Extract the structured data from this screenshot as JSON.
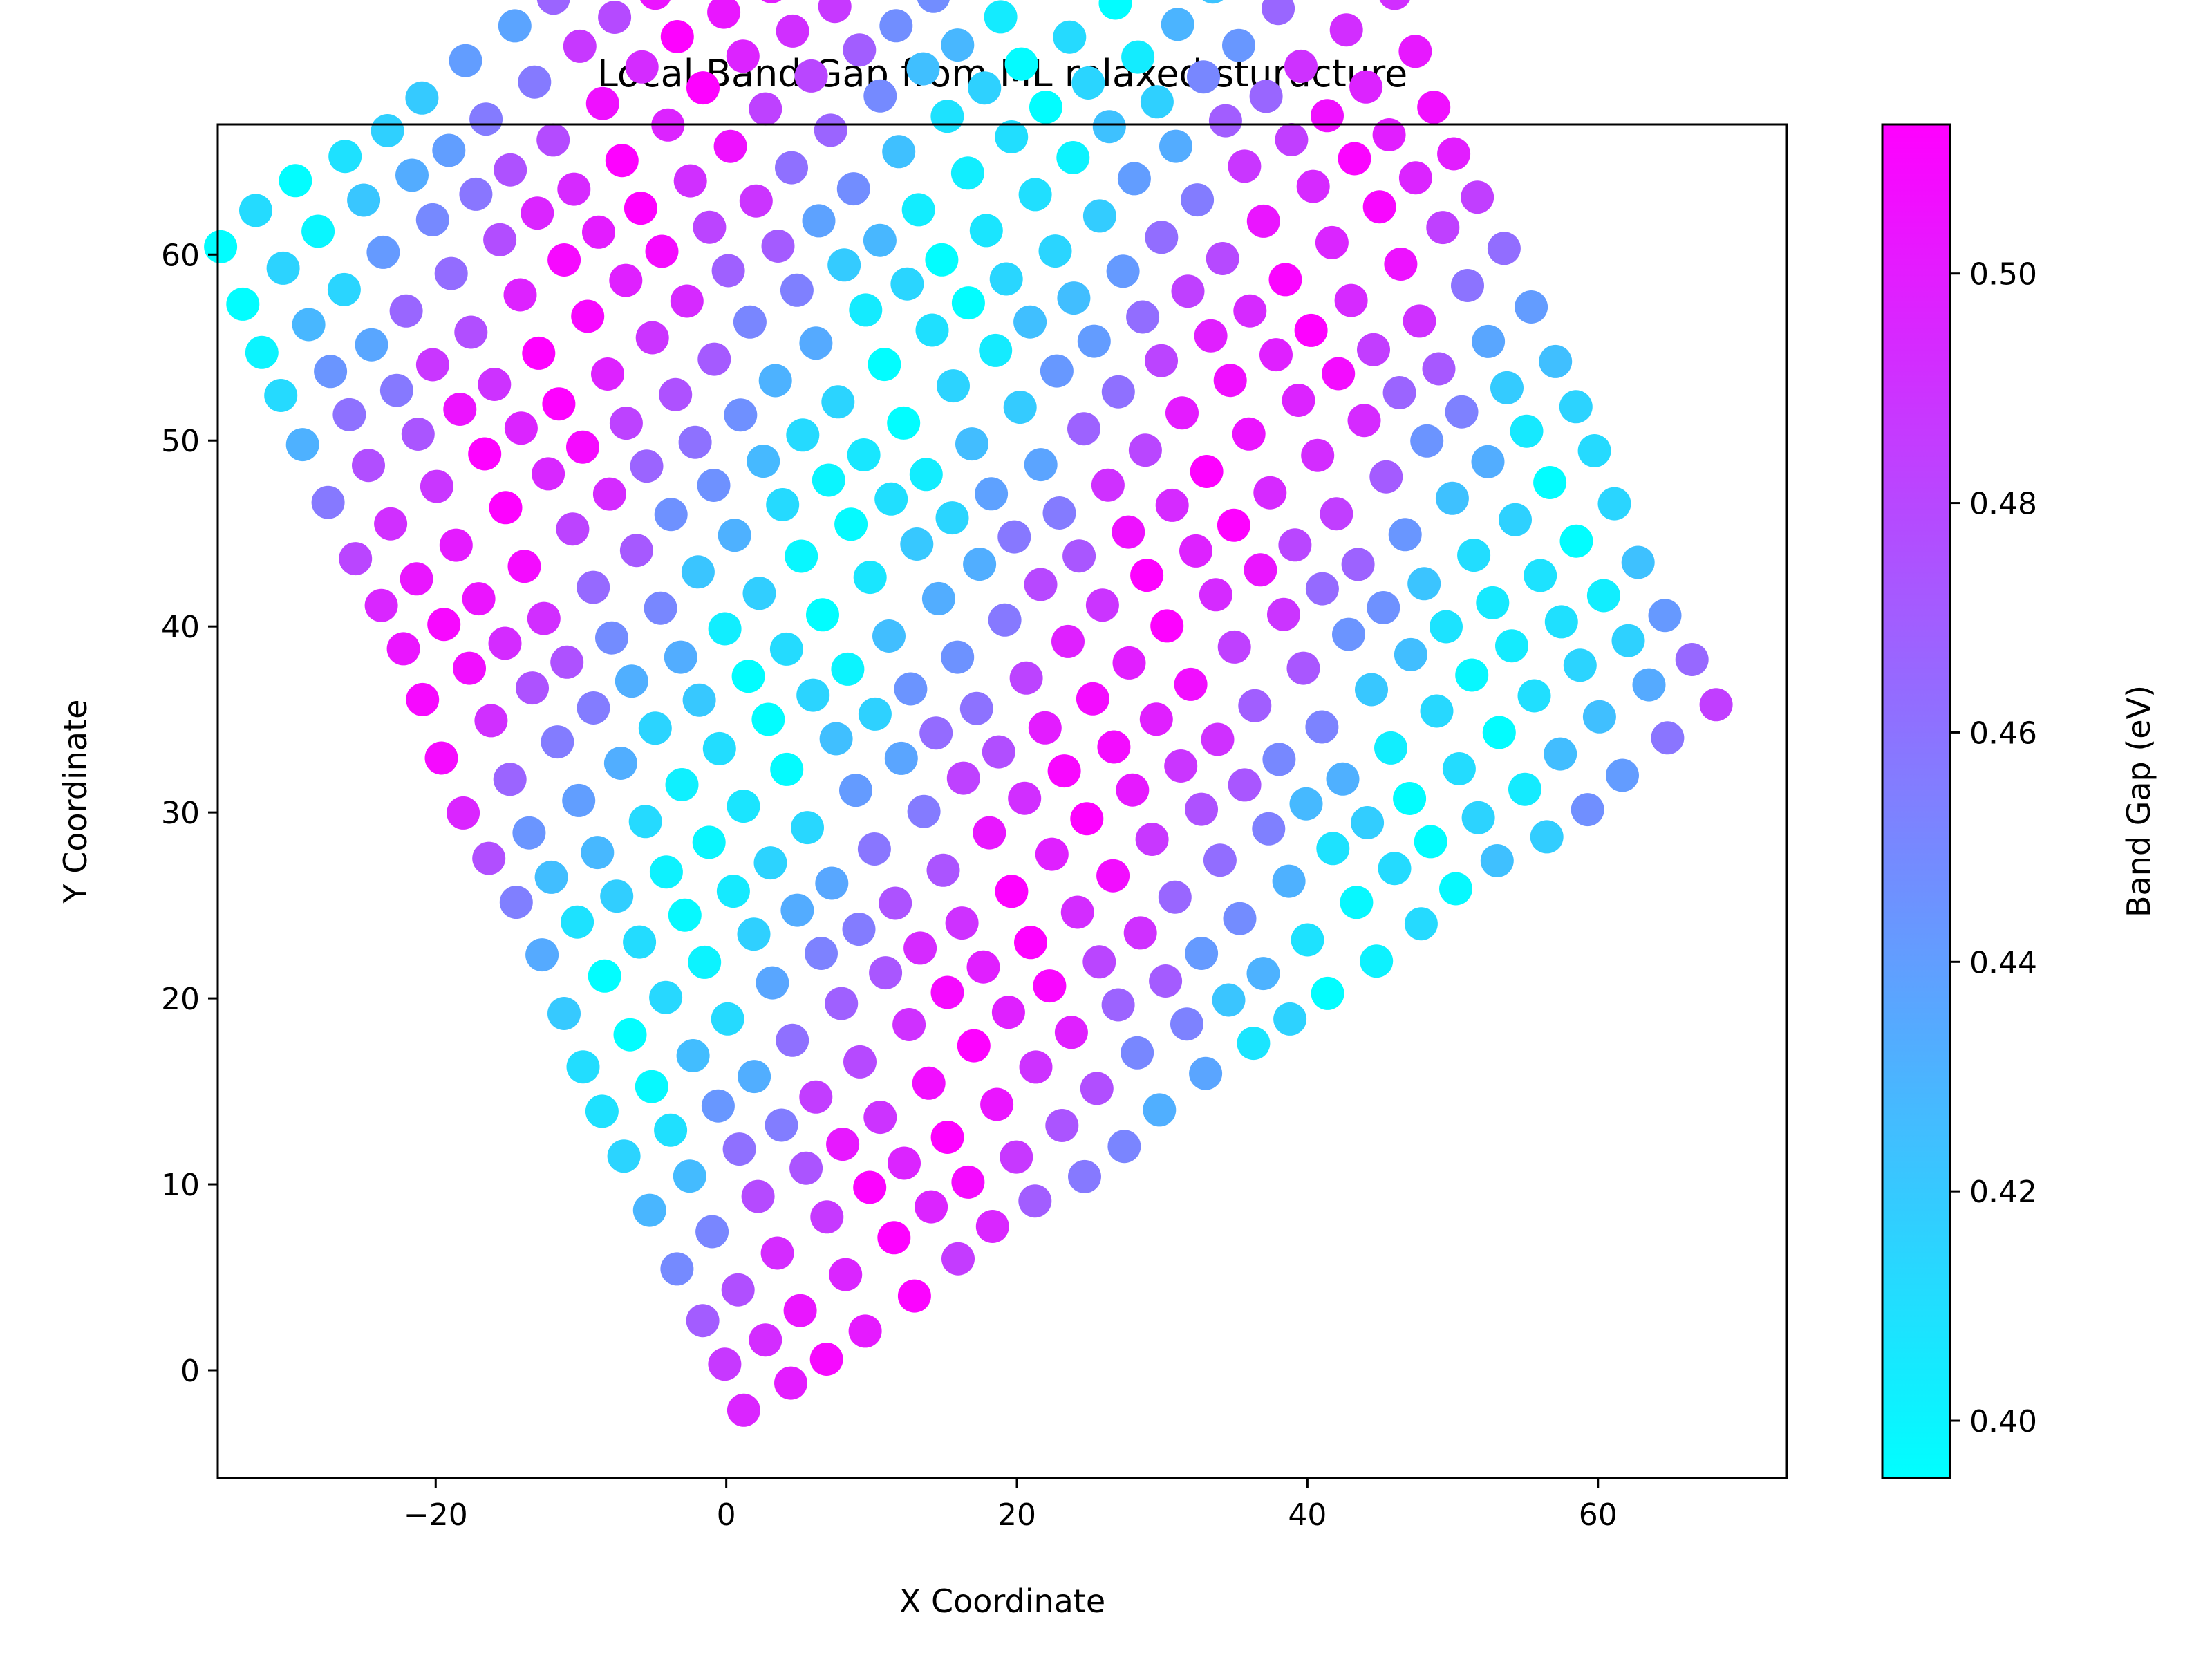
{
  "chart_data": {
    "type": "scatter",
    "title": "Local Band Gap from ML relaxed sturucture",
    "xlabel": "X Coordinate",
    "ylabel": "Y Coordinate",
    "xlim": [
      -35,
      73
    ],
    "ylim": [
      -5.8,
      67
    ],
    "xticks": [
      -20,
      0,
      20,
      40,
      60
    ],
    "xtick_labels": [
      "−20",
      "0",
      "20",
      "40",
      "60"
    ],
    "yticks": [
      0,
      10,
      20,
      30,
      40,
      50,
      60
    ],
    "ytick_labels": [
      "0",
      "10",
      "20",
      "30",
      "40",
      "50",
      "60"
    ],
    "grid": false,
    "colorbar": {
      "label": "Band Gap (eV)",
      "colormap": "cool",
      "range": [
        0.395,
        0.513
      ],
      "ticks": [
        0.4,
        0.42,
        0.44,
        0.46,
        0.48,
        0.5
      ],
      "tick_labels": [
        "0.40",
        "0.42",
        "0.44",
        "0.46",
        "0.48",
        "0.50"
      ],
      "color_low": "#00ffff",
      "color_high": "#ff00ff"
    },
    "lattice": {
      "origin": [
        1.2,
        -2.5
      ],
      "a": [
        2.895,
        1.65
      ],
      "b": [
        -1.58,
        2.735
      ],
      "rows": 24,
      "cols": 24,
      "note_units": "data units"
    },
    "value_model": "band gap (eV) per lattice site",
    "point_count": 576,
    "value_range_observed": [
      0.396,
      0.512
    ]
  }
}
